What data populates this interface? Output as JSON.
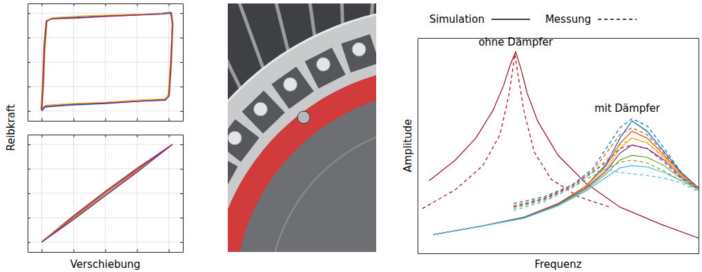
{
  "chart_data": [
    {
      "type": "line",
      "ylabel": "Reibkraft",
      "grid": true,
      "tick_labels": false,
      "xlim": [
        -1.1,
        1.1
      ],
      "ylim": [
        -1.2,
        1.2
      ],
      "xticks": [
        -0.9,
        -0.45,
        0,
        0.45,
        0.9
      ],
      "yticks": [
        -1,
        -0.5,
        0,
        0.5,
        1
      ],
      "series": [
        {
          "color": "#0072bd",
          "x": [
            -0.9,
            -0.88,
            -0.86,
            -0.83,
            -0.75,
            -0.4,
            0,
            0.4,
            0.8,
            0.93,
            0.95,
            0.93,
            0.9,
            0.85,
            0.5,
            0,
            -0.5,
            -0.85,
            -0.9
          ],
          "values": [
            -1.0,
            -0.5,
            0.3,
            0.85,
            0.9,
            0.92,
            0.95,
            0.97,
            1.0,
            1.02,
            0.8,
            0.0,
            -0.7,
            -0.78,
            -0.8,
            -0.85,
            -0.88,
            -0.92,
            -1.0
          ]
        },
        {
          "color": "#d95319",
          "x": [
            -0.91,
            -0.89,
            -0.87,
            -0.84,
            -0.76,
            -0.4,
            0,
            0.4,
            0.8,
            0.94,
            0.96,
            0.94,
            0.91,
            0.86,
            0.5,
            0,
            -0.5,
            -0.86,
            -0.91
          ],
          "values": [
            -0.97,
            -0.45,
            0.35,
            0.83,
            0.88,
            0.9,
            0.93,
            0.96,
            0.99,
            1.01,
            0.78,
            0.02,
            -0.68,
            -0.76,
            -0.79,
            -0.83,
            -0.86,
            -0.9,
            -0.97
          ]
        },
        {
          "color": "#edb120",
          "x": [
            -0.89,
            -0.87,
            -0.85,
            -0.82,
            -0.74,
            -0.4,
            0,
            0.4,
            0.8,
            0.92,
            0.95,
            0.92,
            0.89,
            0.84,
            0.5,
            0,
            -0.5,
            -0.84,
            -0.89
          ],
          "values": [
            -0.95,
            -0.42,
            0.32,
            0.86,
            0.91,
            0.94,
            0.96,
            0.98,
            0.99,
            1.0,
            0.76,
            -0.02,
            -0.66,
            -0.75,
            -0.77,
            -0.82,
            -0.85,
            -0.88,
            -0.95
          ]
        },
        {
          "color": "#7e2f8e",
          "x": [
            -0.9,
            -0.88,
            -0.86,
            -0.83,
            -0.75,
            -0.4,
            0,
            0.4,
            0.8,
            0.93,
            0.95,
            0.93,
            0.9,
            0.85,
            0.5,
            0,
            -0.5,
            -0.85,
            -0.9
          ],
          "values": [
            -0.98,
            -0.48,
            0.28,
            0.84,
            0.89,
            0.91,
            0.94,
            0.96,
            0.98,
            1.0,
            0.79,
            0.01,
            -0.69,
            -0.77,
            -0.8,
            -0.84,
            -0.87,
            -0.91,
            -0.98
          ]
        }
      ]
    },
    {
      "type": "line",
      "xlabel": "Verschiebung",
      "grid": true,
      "tick_labels": false,
      "xlim": [
        -1.1,
        1.1
      ],
      "ylim": [
        -1.2,
        1.2
      ],
      "xticks": [
        -0.9,
        -0.45,
        0,
        0.45,
        0.9
      ],
      "yticks": [
        -1,
        -0.5,
        0,
        0.5,
        1
      ],
      "series": [
        {
          "color": "#0072bd",
          "x": [
            -0.9,
            -0.45,
            0,
            0.45,
            0.95,
            0.45,
            0,
            -0.45,
            -0.9
          ],
          "values": [
            -1.0,
            -0.47,
            0.03,
            0.5,
            1.0,
            0.44,
            -0.04,
            -0.53,
            -1.0
          ]
        },
        {
          "color": "#a2142f",
          "x": [
            -0.9,
            -0.45,
            0,
            0.45,
            0.95,
            0.45,
            0,
            -0.45,
            -0.9
          ],
          "values": [
            -0.99,
            -0.46,
            0.04,
            0.51,
            1.0,
            0.45,
            -0.03,
            -0.52,
            -0.99
          ]
        },
        {
          "color": "#edb120",
          "x": [
            -0.9,
            -0.45,
            0,
            0.45,
            0.95,
            0.45,
            0,
            -0.45,
            -0.9
          ],
          "values": [
            -0.98,
            -0.48,
            0.02,
            0.49,
            0.99,
            0.46,
            -0.02,
            -0.51,
            -0.98
          ]
        },
        {
          "color": "#7e2f8e",
          "x": [
            -0.9,
            -0.45,
            0,
            0.45,
            0.95,
            0.45,
            0,
            -0.45,
            -0.9
          ],
          "values": [
            -1.0,
            -0.49,
            0.01,
            0.48,
            1.0,
            0.43,
            -0.05,
            -0.54,
            -1.0
          ]
        }
      ]
    },
    {
      "type": "line",
      "xlabel": "Frequenz",
      "ylabel": "Amplitude",
      "grid": false,
      "tick_labels": false,
      "legend": "top",
      "legend_items": [
        {
          "text": "Simulation",
          "line_style": "solid"
        },
        {
          "text": "Messung",
          "line_style": "dashed"
        }
      ],
      "annotations": [
        {
          "text": "ohne Dämpfer",
          "x": 34.9,
          "y": 97.8
        },
        {
          "text": "mit Dämpfer",
          "x": 74.6,
          "y": 67.0
        }
      ],
      "xlim": [
        0,
        100
      ],
      "ylim": [
        0,
        100
      ],
      "xticks": [],
      "yticks": [],
      "series": [
        {
          "color": "#a2142f",
          "line_style": "solid",
          "x": [
            4.1,
            13.4,
            20.7,
            26.8,
            30.5,
            32.9,
            34.9,
            36.8,
            39.0,
            42.7,
            50.0,
            59.8,
            72.0,
            86.6,
            100
          ],
          "values": [
            33.7,
            43.3,
            53.5,
            66.3,
            77.6,
            87.2,
            93.6,
            85.6,
            74.4,
            61.5,
            45.5,
            32.7,
            21.5,
            13.5,
            7.1
          ]
        },
        {
          "color": "#a2142f",
          "line_style": "dashed",
          "x": [
            1.7,
            13.4,
            23.2,
            29.3,
            32.4,
            33.9,
            34.6,
            35.8,
            37.8,
            41.5,
            47.6,
            57.3,
            68.3
          ],
          "values": [
            20.8,
            29.5,
            40.7,
            55.1,
            72.8,
            85.6,
            92.6,
            82.4,
            66.3,
            47.1,
            34.3,
            26.3,
            21.5
          ]
        },
        {
          "color": "#0072bd",
          "line_style": "solid",
          "x": [
            5.6,
            23.2,
            37.8,
            50.0,
            59.8,
            67.1,
            72.0,
            76.3,
            81.7,
            87.8,
            93.9,
            100
          ],
          "values": [
            8.7,
            12.8,
            16.7,
            23.1,
            31.1,
            41.3,
            53.5,
            61.5,
            56.7,
            47.1,
            37.5,
            30.4
          ]
        },
        {
          "color": "#d95319",
          "line_style": "solid",
          "x": [
            5.6,
            23.2,
            37.8,
            50.0,
            59.8,
            67.1,
            72.0,
            76.3,
            81.7,
            87.8,
            93.9,
            100
          ],
          "values": [
            8.7,
            12.8,
            16.7,
            23.1,
            31.1,
            40.7,
            51.0,
            56.7,
            53.5,
            45.5,
            36.9,
            30.4
          ]
        },
        {
          "color": "#edb120",
          "line_style": "solid",
          "x": [
            5.6,
            23.2,
            37.8,
            50.0,
            59.8,
            67.1,
            72.0,
            76.3,
            81.7,
            87.8,
            93.9,
            100
          ],
          "values": [
            8.7,
            12.8,
            16.7,
            22.8,
            30.4,
            39.1,
            48.7,
            53.5,
            51.3,
            44.6,
            36.2,
            30.4
          ]
        },
        {
          "color": "#7e2f8e",
          "line_style": "solid",
          "x": [
            5.6,
            23.2,
            37.8,
            50.0,
            59.8,
            67.1,
            72.0,
            76.3,
            81.7,
            87.8,
            93.9,
            100
          ],
          "values": [
            8.7,
            12.8,
            16.7,
            22.8,
            30.1,
            38.1,
            46.5,
            50.3,
            48.7,
            43.3,
            35.6,
            30.4
          ]
        },
        {
          "color": "#77ac30",
          "line_style": "solid",
          "x": [
            5.6,
            23.2,
            37.8,
            50.0,
            59.8,
            67.1,
            72.0,
            76.3,
            81.7,
            87.8,
            93.9,
            100
          ],
          "values": [
            8.7,
            12.8,
            16.3,
            22.4,
            29.5,
            36.9,
            43.3,
            45.5,
            44.6,
            40.7,
            34.6,
            30.1
          ]
        },
        {
          "color": "#4dbeee",
          "line_style": "solid",
          "x": [
            5.6,
            23.2,
            37.8,
            50.0,
            59.8,
            67.1,
            72.0,
            76.3,
            81.7,
            87.8,
            93.9,
            100
          ],
          "values": [
            8.7,
            12.8,
            16.3,
            22.1,
            28.8,
            35.3,
            39.7,
            40.7,
            40.1,
            37.5,
            33.7,
            29.8
          ]
        },
        {
          "color": "#0072bd",
          "line_style": "dashed",
          "x": [
            34.1,
            45.1,
            54.9,
            62.2,
            67.1,
            72.0,
            76.3,
            81.7,
            87.8,
            93.9,
            100
          ],
          "values": [
            23.1,
            26.3,
            31.7,
            39.1,
            48.7,
            58.3,
            62.5,
            59.3,
            48.7,
            37.5,
            30.4
          ]
        },
        {
          "color": "#d95319",
          "line_style": "dashed",
          "x": [
            34.1,
            45.1,
            54.9,
            62.2,
            67.1,
            72.0,
            76.3,
            81.7,
            87.8,
            93.9,
            100
          ],
          "values": [
            22.1,
            25.6,
            31.7,
            38.1,
            46.5,
            55.1,
            58.3,
            55.1,
            46.5,
            36.9,
            30.4
          ]
        },
        {
          "color": "#edb120",
          "line_style": "dashed",
          "x": [
            34.1,
            45.1,
            54.9,
            62.2,
            67.1,
            72.0,
            76.3,
            81.7,
            87.8,
            93.9,
            100
          ],
          "values": [
            21.5,
            25.3,
            31.1,
            37.5,
            43.3,
            50.3,
            53.5,
            51.3,
            43.9,
            35.9,
            30.1
          ]
        },
        {
          "color": "#7e2f8e",
          "line_style": "dashed",
          "x": [
            34.1,
            45.1,
            54.9,
            62.2,
            67.1,
            72.0,
            76.3,
            81.7,
            87.8,
            93.9,
            100
          ],
          "values": [
            21.5,
            25.3,
            31.1,
            37.5,
            42.3,
            48.7,
            50.3,
            48.7,
            42.3,
            34.9,
            29.8
          ]
        },
        {
          "color": "#77ac30",
          "line_style": "dashed",
          "x": [
            34.1,
            45.1,
            54.9,
            62.2,
            67.1,
            72.0,
            76.3,
            81.7,
            87.8,
            93.9,
            100
          ],
          "values": [
            20.8,
            24.7,
            30.4,
            35.9,
            39.1,
            42.3,
            43.3,
            42.0,
            38.1,
            33.7,
            29.2
          ]
        },
        {
          "color": "#4dbeee",
          "line_style": "dashed",
          "x": [
            34.1,
            45.1,
            54.9,
            62.2,
            67.1,
            72.0,
            76.3,
            81.7,
            87.8,
            93.9,
            100
          ],
          "values": [
            19.9,
            24.0,
            30.4,
            37.5,
            39.1,
            37.5,
            36.9,
            36.2,
            34.9,
            32.7,
            28.5
          ]
        }
      ]
    }
  ]
}
